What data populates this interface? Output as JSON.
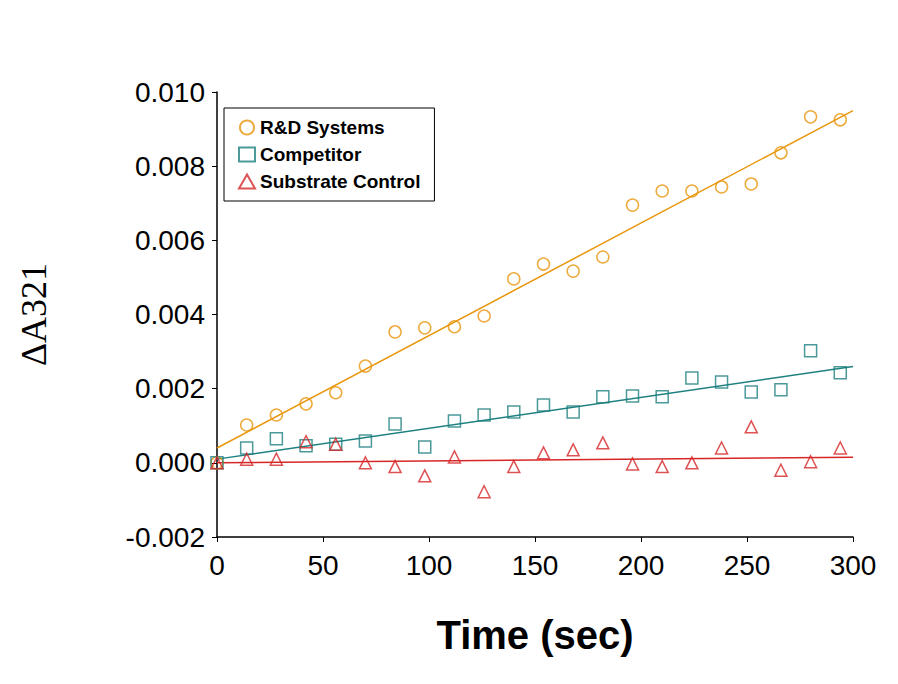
{
  "chart_data": {
    "type": "scatter",
    "x_label": "Time (sec)",
    "y_label": "ΔA321",
    "xlim": [
      0,
      300
    ],
    "xticks": [
      0,
      50,
      100,
      150,
      200,
      250,
      300
    ],
    "ylim": [
      -0.002,
      0.01
    ],
    "yticks": [
      {
        "value": -0.002,
        "label": "-0.002"
      },
      {
        "value": 0,
        "label": "0.000"
      },
      {
        "value": 0.002,
        "label": "0.002"
      },
      {
        "value": 0.004,
        "label": "0.004"
      },
      {
        "value": 0.006,
        "label": "0.006"
      },
      {
        "value": 0.008,
        "label": "0.008"
      },
      {
        "value": 0.01,
        "label": "0.010"
      }
    ],
    "grid": false,
    "legend": "upper left",
    "x": [
      0,
      14,
      28,
      42,
      56,
      70,
      84,
      98,
      112,
      126,
      140,
      154,
      168,
      182,
      196,
      210,
      224,
      238,
      252,
      266,
      280,
      294
    ],
    "series": [
      {
        "name": "R&D Systems",
        "color": "#e8960c",
        "marker": "circle",
        "values": [
          0,
          0.00102,
          0.00129,
          0.00159,
          0.00189,
          0.00261,
          0.00353,
          0.00364,
          0.00367,
          0.00396,
          0.00496,
          0.00536,
          0.00517,
          0.00555,
          0.00695,
          0.00733,
          0.00733,
          0.00744,
          0.00752,
          0.00836,
          0.00933,
          0.00925
        ],
        "fit": [
          [
            0,
            0.0004
          ],
          [
            300,
            0.0095
          ]
        ]
      },
      {
        "name": "Competitor",
        "color": "#1f8080",
        "marker": "square",
        "values": [
          0,
          0.0004,
          0.00065,
          0.00046,
          0.0005,
          0.00059,
          0.00105,
          0.00043,
          0.00113,
          0.00129,
          0.00137,
          0.00156,
          0.00137,
          0.00178,
          0.0018,
          0.00178,
          0.00229,
          0.00218,
          0.00191,
          0.00197,
          0.00302,
          0.00243
        ],
        "fit": [
          [
            0,
            0.0001
          ],
          [
            300,
            0.0026
          ]
        ]
      },
      {
        "name": "Substrate Control",
        "color": "#d62728",
        "marker": "triangle",
        "values": [
          0,
          0.0001,
          0.0001,
          0.00057,
          0.0005,
          0,
          -0.0001,
          -0.00035,
          0.00016,
          -0.00078,
          -0.0001,
          0.00027,
          0.00035,
          0.00054,
          -3e-05,
          -0.0001,
          0,
          0.0004,
          0.00097,
          -0.0002,
          3e-05,
          0.0004
        ],
        "fit": [
          [
            0,
            0.0
          ],
          [
            300,
            0.00015
          ]
        ]
      }
    ]
  }
}
